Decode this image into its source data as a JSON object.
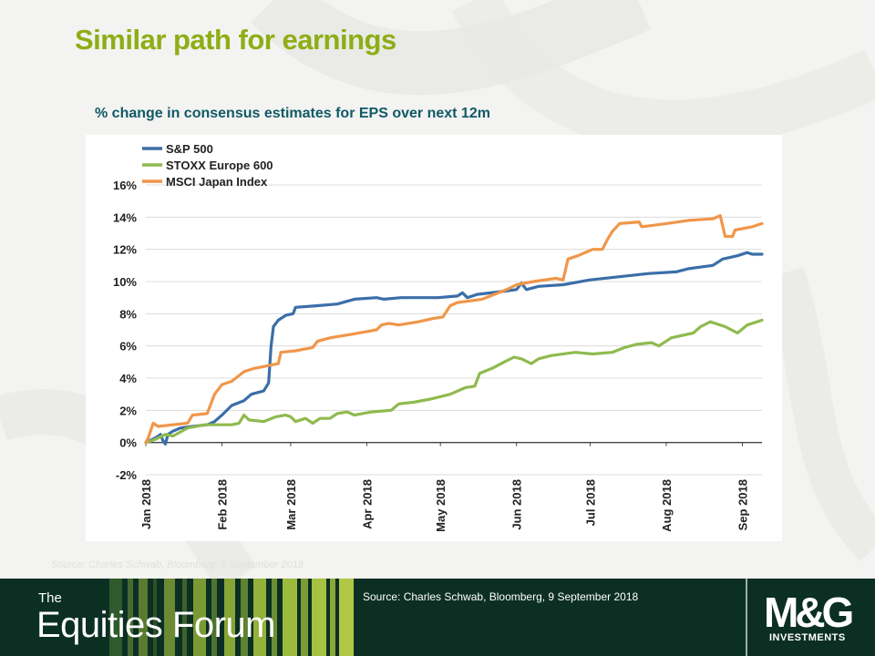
{
  "slide": {
    "title": "Similar path for earnings",
    "subtitle": "% change in consensus estimates for EPS over next 12m",
    "faded_source": "Source: Charles Schwab, Bloomberg, 9 September 2018"
  },
  "footer": {
    "brand_the": "The",
    "brand_name": "Equities Forum",
    "source": "Source: Charles Schwab, Bloomberg, 9 September 2018",
    "logo_text": "M&G",
    "logo_sub": "INVESTMENTS"
  },
  "colors": {
    "title": "#8fad15",
    "subtitle": "#0f5a66",
    "footer_bg": "#0c2f24",
    "sp500": "#3b6ea8",
    "stoxx": "#8fba4e",
    "msci": "#f0964a"
  },
  "chart_data": {
    "type": "line",
    "title": "",
    "xlabel": "",
    "ylabel": "",
    "ylim": [
      -2,
      16
    ],
    "xlim": [
      "2018-01-01",
      "2018-09-09"
    ],
    "yticks": [
      -2,
      0,
      2,
      4,
      6,
      8,
      10,
      12,
      14,
      16
    ],
    "ytick_labels": [
      "-2%",
      "0%",
      "2%",
      "4%",
      "6%",
      "8%",
      "10%",
      "12%",
      "14%",
      "16%"
    ],
    "xtick_dates": [
      "2018-01-01",
      "2018-02-01",
      "2018-03-01",
      "2018-04-01",
      "2018-05-01",
      "2018-06-01",
      "2018-07-01",
      "2018-08-01",
      "2018-09-01"
    ],
    "xtick_labels": [
      "Jan 2018",
      "Feb 2018",
      "Mar 2018",
      "Apr 2018",
      "May 2018",
      "Jun 2018",
      "Jul 2018",
      "Aug 2018",
      "Sep 2018"
    ],
    "grid": "horizontal",
    "legend_position": "top-left",
    "series": [
      {
        "name": "S&P 500",
        "color": "#3b6ea8",
        "points": [
          [
            "2018-01-01",
            0
          ],
          [
            "2018-01-05",
            0.3
          ],
          [
            "2018-01-07",
            0.5
          ],
          [
            "2018-01-08",
            0.1
          ],
          [
            "2018-01-09",
            -0.1
          ],
          [
            "2018-01-10",
            0.5
          ],
          [
            "2018-01-12",
            0.7
          ],
          [
            "2018-01-15",
            0.9
          ],
          [
            "2018-01-20",
            1.0
          ],
          [
            "2018-01-26",
            1.1
          ],
          [
            "2018-01-29",
            1.3
          ],
          [
            "2018-02-01",
            1.7
          ],
          [
            "2018-02-05",
            2.3
          ],
          [
            "2018-02-10",
            2.6
          ],
          [
            "2018-02-13",
            3.0
          ],
          [
            "2018-02-18",
            3.2
          ],
          [
            "2018-02-20",
            3.7
          ],
          [
            "2018-02-21",
            6.0
          ],
          [
            "2018-02-22",
            7.2
          ],
          [
            "2018-02-24",
            7.6
          ],
          [
            "2018-02-27",
            7.9
          ],
          [
            "2018-03-02",
            8.0
          ],
          [
            "2018-03-03",
            8.4
          ],
          [
            "2018-03-12",
            8.5
          ],
          [
            "2018-03-20",
            8.6
          ],
          [
            "2018-03-27",
            8.9
          ],
          [
            "2018-04-05",
            9.0
          ],
          [
            "2018-04-08",
            8.9
          ],
          [
            "2018-04-15",
            9.0
          ],
          [
            "2018-04-30",
            9.0
          ],
          [
            "2018-05-08",
            9.1
          ],
          [
            "2018-05-10",
            9.3
          ],
          [
            "2018-05-12",
            9.0
          ],
          [
            "2018-05-16",
            9.2
          ],
          [
            "2018-05-27",
            9.4
          ],
          [
            "2018-06-01",
            9.5
          ],
          [
            "2018-06-03",
            9.9
          ],
          [
            "2018-06-05",
            9.5
          ],
          [
            "2018-06-10",
            9.7
          ],
          [
            "2018-06-20",
            9.8
          ],
          [
            "2018-07-01",
            10.1
          ],
          [
            "2018-07-13",
            10.3
          ],
          [
            "2018-07-25",
            10.5
          ],
          [
            "2018-08-05",
            10.6
          ],
          [
            "2018-08-10",
            10.8
          ],
          [
            "2018-08-20",
            11.0
          ],
          [
            "2018-08-24",
            11.4
          ],
          [
            "2018-08-30",
            11.6
          ],
          [
            "2018-09-03",
            11.8
          ],
          [
            "2018-09-05",
            11.7
          ],
          [
            "2018-09-09",
            11.7
          ]
        ]
      },
      {
        "name": "STOXX Europe 600",
        "color": "#8fba4e",
        "points": [
          [
            "2018-01-01",
            0
          ],
          [
            "2018-01-05",
            0.2
          ],
          [
            "2018-01-09",
            0.5
          ],
          [
            "2018-01-12",
            0.4
          ],
          [
            "2018-01-18",
            0.9
          ],
          [
            "2018-01-25",
            1.1
          ],
          [
            "2018-02-05",
            1.1
          ],
          [
            "2018-02-08",
            1.2
          ],
          [
            "2018-02-10",
            1.7
          ],
          [
            "2018-02-12",
            1.4
          ],
          [
            "2018-02-18",
            1.3
          ],
          [
            "2018-02-23",
            1.6
          ],
          [
            "2018-02-27",
            1.7
          ],
          [
            "2018-03-01",
            1.6
          ],
          [
            "2018-03-03",
            1.3
          ],
          [
            "2018-03-07",
            1.5
          ],
          [
            "2018-03-10",
            1.2
          ],
          [
            "2018-03-13",
            1.5
          ],
          [
            "2018-03-17",
            1.5
          ],
          [
            "2018-03-20",
            1.8
          ],
          [
            "2018-03-24",
            1.9
          ],
          [
            "2018-03-27",
            1.7
          ],
          [
            "2018-04-03",
            1.9
          ],
          [
            "2018-04-11",
            2.0
          ],
          [
            "2018-04-14",
            2.4
          ],
          [
            "2018-04-20",
            2.5
          ],
          [
            "2018-04-27",
            2.7
          ],
          [
            "2018-05-05",
            3.0
          ],
          [
            "2018-05-11",
            3.4
          ],
          [
            "2018-05-15",
            3.5
          ],
          [
            "2018-05-17",
            4.3
          ],
          [
            "2018-05-22",
            4.6
          ],
          [
            "2018-05-27",
            5.0
          ],
          [
            "2018-05-31",
            5.3
          ],
          [
            "2018-06-03",
            5.2
          ],
          [
            "2018-06-07",
            4.9
          ],
          [
            "2018-06-10",
            5.2
          ],
          [
            "2018-06-15",
            5.4
          ],
          [
            "2018-06-25",
            5.6
          ],
          [
            "2018-07-02",
            5.5
          ],
          [
            "2018-07-10",
            5.6
          ],
          [
            "2018-07-15",
            5.9
          ],
          [
            "2018-07-20",
            6.1
          ],
          [
            "2018-07-26",
            6.2
          ],
          [
            "2018-07-29",
            6.0
          ],
          [
            "2018-08-03",
            6.5
          ],
          [
            "2018-08-12",
            6.8
          ],
          [
            "2018-08-15",
            7.2
          ],
          [
            "2018-08-19",
            7.5
          ],
          [
            "2018-08-25",
            7.2
          ],
          [
            "2018-08-30",
            6.8
          ],
          [
            "2018-09-03",
            7.3
          ],
          [
            "2018-09-07",
            7.5
          ],
          [
            "2018-09-09",
            7.6
          ]
        ]
      },
      {
        "name": "MSCI Japan Index",
        "color": "#f0964a",
        "points": [
          [
            "2018-01-01",
            0
          ],
          [
            "2018-01-02",
            0.3
          ],
          [
            "2018-01-04",
            1.2
          ],
          [
            "2018-01-06",
            1.0
          ],
          [
            "2018-01-12",
            1.1
          ],
          [
            "2018-01-18",
            1.2
          ],
          [
            "2018-01-20",
            1.7
          ],
          [
            "2018-01-26",
            1.8
          ],
          [
            "2018-01-29",
            3.0
          ],
          [
            "2018-02-01",
            3.6
          ],
          [
            "2018-02-05",
            3.8
          ],
          [
            "2018-02-10",
            4.4
          ],
          [
            "2018-02-14",
            4.6
          ],
          [
            "2018-02-24",
            4.9
          ],
          [
            "2018-02-25",
            5.6
          ],
          [
            "2018-03-03",
            5.7
          ],
          [
            "2018-03-10",
            5.9
          ],
          [
            "2018-03-12",
            6.3
          ],
          [
            "2018-03-17",
            6.5
          ],
          [
            "2018-03-25",
            6.7
          ],
          [
            "2018-04-05",
            7.0
          ],
          [
            "2018-04-07",
            7.3
          ],
          [
            "2018-04-10",
            7.4
          ],
          [
            "2018-04-14",
            7.3
          ],
          [
            "2018-04-22",
            7.5
          ],
          [
            "2018-04-28",
            7.7
          ],
          [
            "2018-05-02",
            7.8
          ],
          [
            "2018-05-05",
            8.5
          ],
          [
            "2018-05-08",
            8.7
          ],
          [
            "2018-05-18",
            8.9
          ],
          [
            "2018-05-23",
            9.2
          ],
          [
            "2018-05-28",
            9.5
          ],
          [
            "2018-06-01",
            9.8
          ],
          [
            "2018-06-08",
            10.0
          ],
          [
            "2018-06-17",
            10.2
          ],
          [
            "2018-06-20",
            10.1
          ],
          [
            "2018-06-22",
            11.4
          ],
          [
            "2018-06-26",
            11.6
          ],
          [
            "2018-07-02",
            12.0
          ],
          [
            "2018-07-06",
            12.0
          ],
          [
            "2018-07-08",
            12.6
          ],
          [
            "2018-07-10",
            13.1
          ],
          [
            "2018-07-13",
            13.6
          ],
          [
            "2018-07-21",
            13.7
          ],
          [
            "2018-07-22",
            13.4
          ],
          [
            "2018-08-01",
            13.6
          ],
          [
            "2018-08-10",
            13.8
          ],
          [
            "2018-08-20",
            13.9
          ],
          [
            "2018-08-23",
            14.1
          ],
          [
            "2018-08-25",
            12.8
          ],
          [
            "2018-08-28",
            12.8
          ],
          [
            "2018-08-29",
            13.2
          ],
          [
            "2018-09-05",
            13.4
          ],
          [
            "2018-09-09",
            13.6
          ]
        ]
      }
    ]
  }
}
